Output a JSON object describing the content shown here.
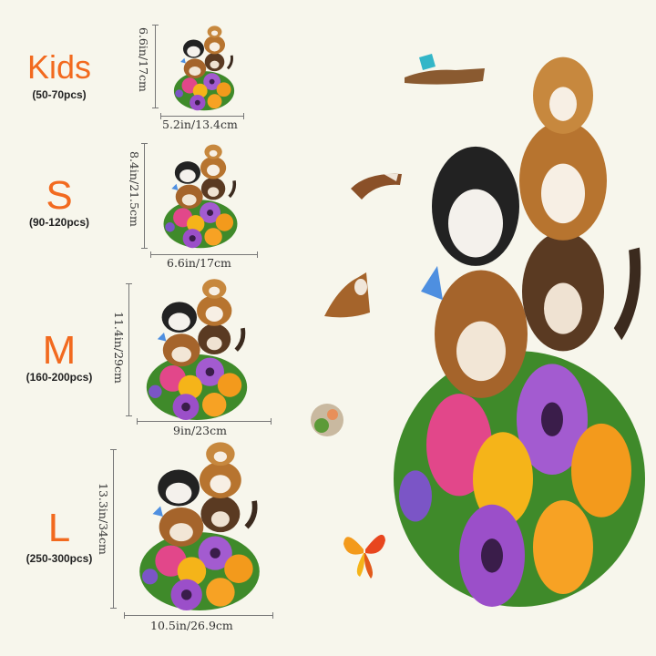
{
  "sizes": [
    {
      "name": "Kids",
      "pieces": "(50-70pcs)",
      "height": "6.6in/17cm",
      "width": "5.2in/13.4cm"
    },
    {
      "name": "S",
      "pieces": "(90-120pcs)",
      "height": "8.4in/21.5cm",
      "width": "6.6in/17cm"
    },
    {
      "name": "M",
      "pieces": "(160-200pcs)",
      "height": "11.4in/29cm",
      "width": "9in/23cm"
    },
    {
      "name": "L",
      "pieces": "(250-300pcs)",
      "height": "13.3in/34cm",
      "width": "10.5in/26.9cm"
    }
  ],
  "colors": {
    "accent": "#f26a1f",
    "background": "#f7f6ec",
    "text": "#222222"
  }
}
